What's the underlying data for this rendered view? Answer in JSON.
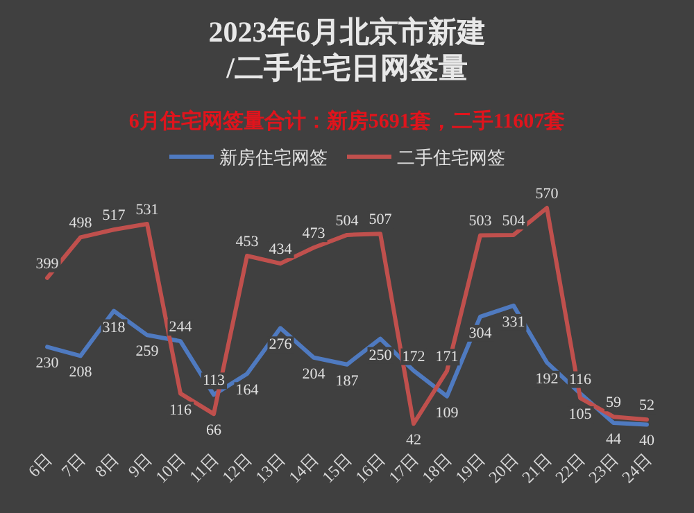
{
  "chart_data": {
    "type": "line",
    "title": "2023年6月北京市新建/二手住宅日网签量",
    "subtitle": "6月住宅网签量合计：新房5691套，二手11607套",
    "categories": [
      "6日",
      "7日",
      "8日",
      "9日",
      "10日",
      "11日",
      "12日",
      "13日",
      "14日",
      "15日",
      "16日",
      "17日",
      "18日",
      "19日",
      "20日",
      "21日",
      "22日",
      "23日",
      "24日"
    ],
    "series": [
      {
        "name": "新房住宅网签",
        "color": "#4f7ac0",
        "values": [
          230,
          208,
          318,
          259,
          244,
          113,
          164,
          276,
          204,
          187,
          250,
          172,
          109,
          304,
          331,
          192,
          116,
          44,
          40
        ]
      },
      {
        "name": "二手住宅网签",
        "color": "#c0504d",
        "values": [
          399,
          498,
          517,
          531,
          116,
          66,
          453,
          434,
          473,
          504,
          507,
          42,
          171,
          503,
          504,
          570,
          105,
          59,
          52
        ]
      }
    ],
    "data_labels": true,
    "legend": "top",
    "grid": false,
    "marker": "none",
    "line_style": "solid"
  }
}
